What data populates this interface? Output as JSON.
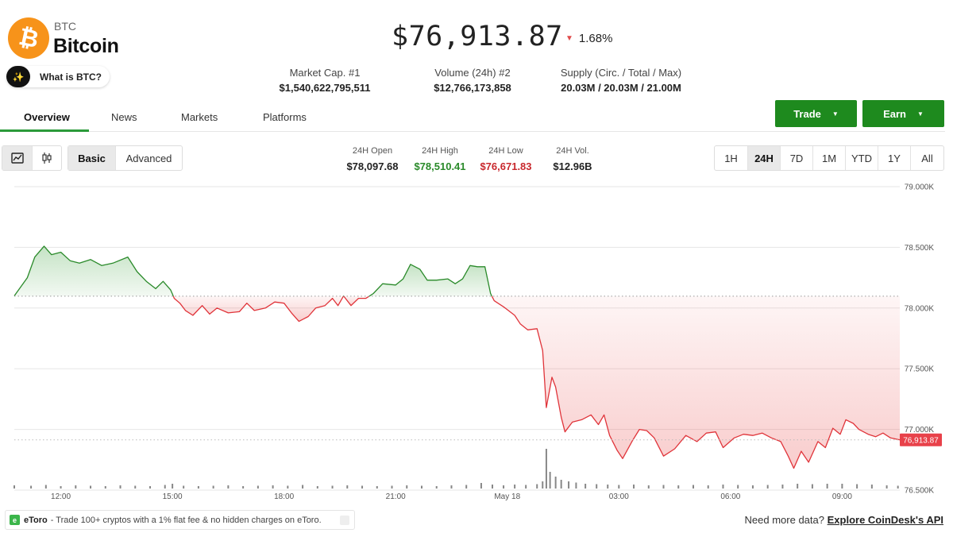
{
  "coin": {
    "ticker": "BTC",
    "name": "Bitcoin",
    "logo_glyph": "₿",
    "logo_color": "#F7931A",
    "what_is_label": "What is BTC?",
    "price": "$76,913.87",
    "change": "1.68%",
    "change_direction": "down"
  },
  "stats": [
    {
      "label": "Market Cap. #1",
      "value": "$1,540,622,795,511"
    },
    {
      "label": "Volume (24h) #2",
      "value": "$12,766,173,858"
    },
    {
      "label": "Supply (Circ. / Total / Max)",
      "value": "20.03M / 20.03M / 21.00M"
    }
  ],
  "tabs": [
    {
      "label": "Overview",
      "active": true
    },
    {
      "label": "News",
      "active": false
    },
    {
      "label": "Markets",
      "active": false
    },
    {
      "label": "Platforms",
      "active": false
    }
  ],
  "actions": {
    "trade": "Trade",
    "earn": "Earn"
  },
  "chart_controls": {
    "chart_type_icons": [
      "line-chart-icon",
      "candlestick-icon"
    ],
    "modes": [
      {
        "label": "Basic",
        "selected": true
      },
      {
        "label": "Advanced",
        "selected": false
      }
    ],
    "ranges": [
      {
        "label": "1H",
        "selected": false
      },
      {
        "label": "24H",
        "selected": true
      },
      {
        "label": "7D",
        "selected": false
      },
      {
        "label": "1M",
        "selected": false
      },
      {
        "label": "YTD",
        "selected": false
      },
      {
        "label": "1Y",
        "selected": false
      },
      {
        "label": "All",
        "selected": false
      }
    ]
  },
  "day_stats": [
    {
      "label": "24H Open",
      "value": "$78,097.68",
      "color": "#222222"
    },
    {
      "label": "24H High",
      "value": "$78,510.41",
      "color": "#2a8a2a"
    },
    {
      "label": "24H Low",
      "value": "$76,671.83",
      "color": "#c8282d"
    },
    {
      "label": "24H Vol.",
      "value": "$12.96B",
      "color": "#222222"
    }
  ],
  "chart_data": {
    "type": "line",
    "baseline": 78097.68,
    "current_price_label": "76,913.87",
    "current": 76913.87,
    "ylim": [
      76500,
      79000
    ],
    "y_ticks": [
      {
        "value": 79000,
        "label": "79.000K"
      },
      {
        "value": 78500,
        "label": "78.500K"
      },
      {
        "value": 78000,
        "label": "78.000K"
      },
      {
        "value": 77500,
        "label": "77.500K"
      },
      {
        "value": 77000,
        "label": "77.000K"
      },
      {
        "value": 76500,
        "label": "76.500K"
      }
    ],
    "x_ticks": [
      {
        "value": 1,
        "label": "12:00"
      },
      {
        "value": 4,
        "label": "15:00"
      },
      {
        "value": 7,
        "label": "18:00"
      },
      {
        "value": 10,
        "label": "21:00"
      },
      {
        "value": 13,
        "label": "May 18"
      },
      {
        "value": 16,
        "label": "03:00"
      },
      {
        "value": 19,
        "label": "06:00"
      },
      {
        "value": 22,
        "label": "09:00"
      }
    ],
    "xlim": [
      -0.25,
      23.55
    ],
    "series": [
      {
        "points": [
          [
            -0.25,
            78100
          ],
          [
            0.1,
            78250
          ],
          [
            0.3,
            78420
          ],
          [
            0.55,
            78510
          ],
          [
            0.75,
            78440
          ],
          [
            1.0,
            78460
          ],
          [
            1.25,
            78390
          ],
          [
            1.5,
            78370
          ],
          [
            1.8,
            78400
          ],
          [
            2.1,
            78350
          ],
          [
            2.4,
            78370
          ],
          [
            2.8,
            78420
          ],
          [
            3.05,
            78300
          ],
          [
            3.3,
            78220
          ],
          [
            3.55,
            78160
          ],
          [
            3.75,
            78220
          ],
          [
            3.95,
            78150
          ],
          [
            4.05,
            78080
          ],
          [
            4.2,
            78040
          ],
          [
            4.35,
            77980
          ],
          [
            4.55,
            77940
          ],
          [
            4.8,
            78020
          ],
          [
            5.0,
            77950
          ],
          [
            5.2,
            78000
          ],
          [
            5.5,
            77960
          ],
          [
            5.8,
            77970
          ],
          [
            6.0,
            78040
          ],
          [
            6.2,
            77980
          ],
          [
            6.5,
            78000
          ],
          [
            6.75,
            78050
          ],
          [
            7.0,
            78040
          ],
          [
            7.2,
            77960
          ],
          [
            7.4,
            77890
          ],
          [
            7.65,
            77930
          ],
          [
            7.85,
            78000
          ],
          [
            8.1,
            78020
          ],
          [
            8.3,
            78080
          ],
          [
            8.45,
            78020
          ],
          [
            8.6,
            78100
          ],
          [
            8.8,
            78020
          ],
          [
            9.0,
            78080
          ],
          [
            9.2,
            78080
          ],
          [
            9.4,
            78120
          ],
          [
            9.65,
            78200
          ],
          [
            10.0,
            78190
          ],
          [
            10.2,
            78240
          ],
          [
            10.4,
            78360
          ],
          [
            10.65,
            78320
          ],
          [
            10.85,
            78230
          ],
          [
            11.1,
            78230
          ],
          [
            11.4,
            78240
          ],
          [
            11.6,
            78200
          ],
          [
            11.8,
            78240
          ],
          [
            12.0,
            78350
          ],
          [
            12.2,
            78340
          ],
          [
            12.4,
            78340
          ],
          [
            12.55,
            78120
          ],
          [
            12.65,
            78060
          ],
          [
            12.9,
            78010
          ],
          [
            13.2,
            77940
          ],
          [
            13.35,
            77870
          ],
          [
            13.55,
            77820
          ],
          [
            13.8,
            77830
          ],
          [
            13.95,
            77650
          ],
          [
            14.05,
            77180
          ],
          [
            14.2,
            77430
          ],
          [
            14.3,
            77350
          ],
          [
            14.45,
            77100
          ],
          [
            14.55,
            76980
          ],
          [
            14.75,
            77060
          ],
          [
            15.0,
            77080
          ],
          [
            15.25,
            77120
          ],
          [
            15.45,
            77040
          ],
          [
            15.6,
            77120
          ],
          [
            15.75,
            76950
          ],
          [
            15.95,
            76830
          ],
          [
            16.1,
            76760
          ],
          [
            16.35,
            76900
          ],
          [
            16.55,
            77000
          ],
          [
            16.75,
            76990
          ],
          [
            16.95,
            76930
          ],
          [
            17.2,
            76780
          ],
          [
            17.5,
            76840
          ],
          [
            17.8,
            76950
          ],
          [
            18.1,
            76900
          ],
          [
            18.35,
            76970
          ],
          [
            18.6,
            76980
          ],
          [
            18.8,
            76850
          ],
          [
            19.1,
            76930
          ],
          [
            19.35,
            76960
          ],
          [
            19.6,
            76950
          ],
          [
            19.85,
            76970
          ],
          [
            20.1,
            76930
          ],
          [
            20.35,
            76900
          ],
          [
            20.55,
            76780
          ],
          [
            20.7,
            76680
          ],
          [
            20.9,
            76820
          ],
          [
            21.1,
            76730
          ],
          [
            21.35,
            76900
          ],
          [
            21.55,
            76850
          ],
          [
            21.75,
            77010
          ],
          [
            21.95,
            76960
          ],
          [
            22.1,
            77080
          ],
          [
            22.3,
            77050
          ],
          [
            22.45,
            77000
          ],
          [
            22.7,
            76960
          ],
          [
            22.9,
            76940
          ],
          [
            23.1,
            76970
          ],
          [
            23.3,
            76930
          ],
          [
            23.55,
            76913.87
          ]
        ]
      }
    ],
    "volume": [
      [
        -0.25,
        0.08
      ],
      [
        0.2,
        0.07
      ],
      [
        0.6,
        0.09
      ],
      [
        1.0,
        0.06
      ],
      [
        1.4,
        0.08
      ],
      [
        1.8,
        0.07
      ],
      [
        2.2,
        0.06
      ],
      [
        2.6,
        0.08
      ],
      [
        3.0,
        0.07
      ],
      [
        3.4,
        0.06
      ],
      [
        3.8,
        0.09
      ],
      [
        4.0,
        0.12
      ],
      [
        4.3,
        0.07
      ],
      [
        4.7,
        0.06
      ],
      [
        5.1,
        0.07
      ],
      [
        5.5,
        0.08
      ],
      [
        5.9,
        0.06
      ],
      [
        6.3,
        0.07
      ],
      [
        6.7,
        0.08
      ],
      [
        7.1,
        0.07
      ],
      [
        7.5,
        0.09
      ],
      [
        7.9,
        0.06
      ],
      [
        8.3,
        0.07
      ],
      [
        8.7,
        0.08
      ],
      [
        9.1,
        0.07
      ],
      [
        9.5,
        0.06
      ],
      [
        9.9,
        0.07
      ],
      [
        10.3,
        0.08
      ],
      [
        10.7,
        0.07
      ],
      [
        11.1,
        0.06
      ],
      [
        11.5,
        0.08
      ],
      [
        11.9,
        0.09
      ],
      [
        12.3,
        0.14
      ],
      [
        12.6,
        0.1
      ],
      [
        12.9,
        0.08
      ],
      [
        13.2,
        0.1
      ],
      [
        13.5,
        0.09
      ],
      [
        13.8,
        0.11
      ],
      [
        13.95,
        0.18
      ],
      [
        14.05,
        1.0
      ],
      [
        14.15,
        0.42
      ],
      [
        14.3,
        0.3
      ],
      [
        14.45,
        0.22
      ],
      [
        14.65,
        0.18
      ],
      [
        14.85,
        0.15
      ],
      [
        15.1,
        0.12
      ],
      [
        15.4,
        0.11
      ],
      [
        15.7,
        0.1
      ],
      [
        16.0,
        0.09
      ],
      [
        16.4,
        0.1
      ],
      [
        16.8,
        0.08
      ],
      [
        17.2,
        0.09
      ],
      [
        17.6,
        0.08
      ],
      [
        18.0,
        0.09
      ],
      [
        18.4,
        0.08
      ],
      [
        18.8,
        0.1
      ],
      [
        19.2,
        0.09
      ],
      [
        19.6,
        0.08
      ],
      [
        20.0,
        0.09
      ],
      [
        20.4,
        0.1
      ],
      [
        20.8,
        0.12
      ],
      [
        21.2,
        0.11
      ],
      [
        21.6,
        0.12
      ],
      [
        22.0,
        0.12
      ],
      [
        22.4,
        0.11
      ],
      [
        22.8,
        0.1
      ],
      [
        23.2,
        0.08
      ],
      [
        23.5,
        0.07
      ]
    ]
  },
  "footer": {
    "etoro_name": "eToro",
    "etoro_text": "- Trade 100+ cryptos with a 1% flat fee & no hidden charges on eToro.",
    "more_data_text": "Need more data?",
    "api_link": "Explore CoinDesk's API"
  }
}
